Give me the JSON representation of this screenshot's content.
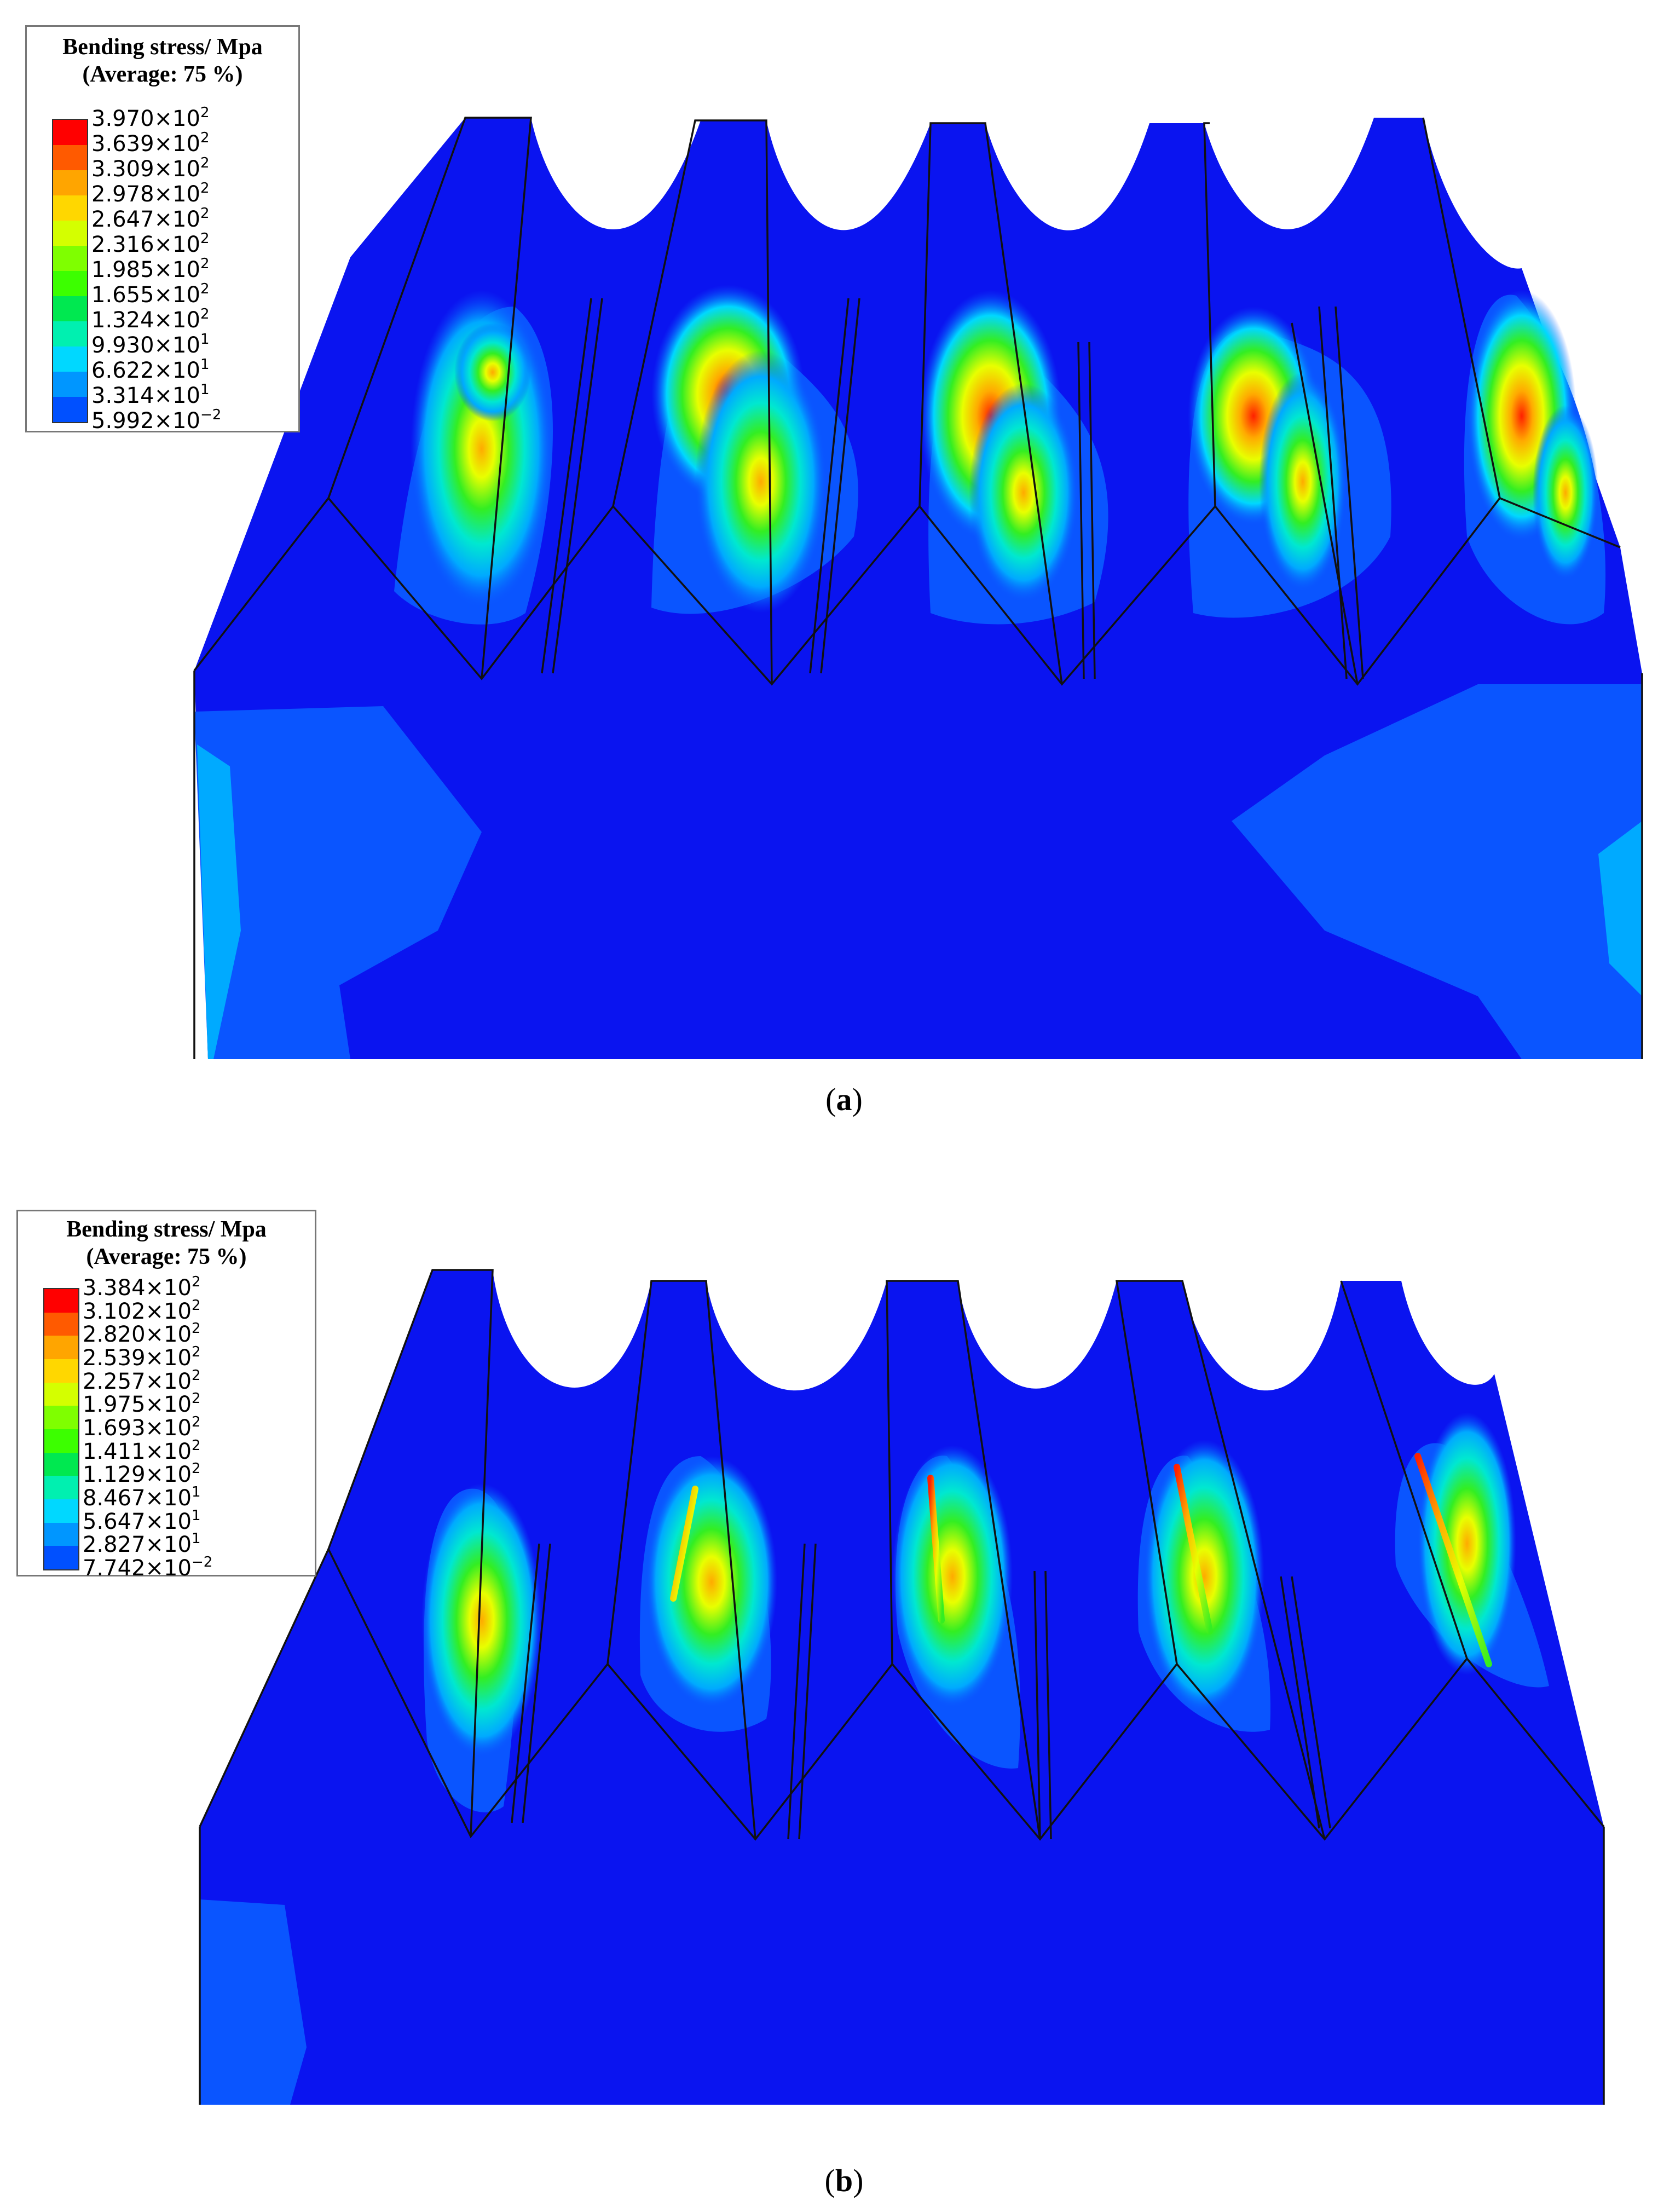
{
  "figure": {
    "panels": [
      {
        "id": "a",
        "caption_letter": "a",
        "legend": {
          "title": "Bending stress/ Mpa",
          "subtitle": "(Average: 75 %)",
          "ticks": [
            {
              "mant": "3.970×10",
              "exp": "2"
            },
            {
              "mant": "3.639×10",
              "exp": "2"
            },
            {
              "mant": "3.309×10",
              "exp": "2"
            },
            {
              "mant": "2.978×10",
              "exp": "2"
            },
            {
              "mant": "2.647×10",
              "exp": "2"
            },
            {
              "mant": "2.316×10",
              "exp": "2"
            },
            {
              "mant": "1.985×10",
              "exp": "2"
            },
            {
              "mant": "1.655×10",
              "exp": "2"
            },
            {
              "mant": "1.324×10",
              "exp": "2"
            },
            {
              "mant": "9.930×10",
              "exp": "1"
            },
            {
              "mant": "6.622×10",
              "exp": "1"
            },
            {
              "mant": "3.314×10",
              "exp": "1"
            },
            {
              "mant": "5.992×10",
              "exp": "−2"
            }
          ]
        }
      },
      {
        "id": "b",
        "caption_letter": "b",
        "legend": {
          "title": "Bending stress/ Mpa",
          "subtitle": "(Average: 75 %)",
          "ticks": [
            {
              "mant": "3.384×10",
              "exp": "2"
            },
            {
              "mant": "3.102×10",
              "exp": "2"
            },
            {
              "mant": "2.820×10",
              "exp": "2"
            },
            {
              "mant": "2.539×10",
              "exp": "2"
            },
            {
              "mant": "2.257×10",
              "exp": "2"
            },
            {
              "mant": "1.975×10",
              "exp": "2"
            },
            {
              "mant": "1.693×10",
              "exp": "2"
            },
            {
              "mant": "1.411×10",
              "exp": "2"
            },
            {
              "mant": "1.129×10",
              "exp": "2"
            },
            {
              "mant": "8.467×10",
              "exp": "1"
            },
            {
              "mant": "5.647×10",
              "exp": "1"
            },
            {
              "mant": "2.827×10",
              "exp": "1"
            },
            {
              "mant": "7.742×10",
              "exp": "−2"
            }
          ]
        }
      }
    ],
    "colormap": [
      "#ff0000",
      "#ff5a00",
      "#ffa500",
      "#ffd700",
      "#d4ff00",
      "#7fff00",
      "#3cff00",
      "#00e850",
      "#00f0b0",
      "#00d8ff",
      "#0096ff",
      "#0050ff",
      "#0000ff"
    ],
    "colors": {
      "base": "#0a14f0",
      "low": "#0a55ff",
      "mid": "#00aaff",
      "cyan": "#00e8d0",
      "green": "#22ee22",
      "yellow": "#e8ff00",
      "orange": "#ffaa00",
      "red": "#ff2000",
      "edge": "#111111"
    }
  }
}
